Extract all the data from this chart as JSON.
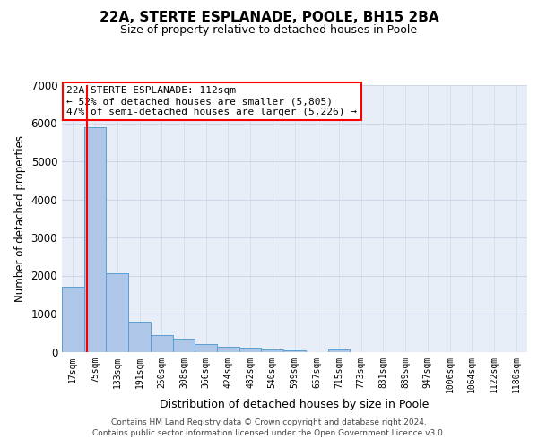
{
  "title1": "22A, STERTE ESPLANADE, POOLE, BH15 2BA",
  "title2": "Size of property relative to detached houses in Poole",
  "xlabel": "Distribution of detached houses by size in Poole",
  "ylabel": "Number of detached properties",
  "bar_labels": [
    "17sqm",
    "75sqm",
    "133sqm",
    "191sqm",
    "250sqm",
    "308sqm",
    "366sqm",
    "424sqm",
    "482sqm",
    "540sqm",
    "599sqm",
    "657sqm",
    "715sqm",
    "773sqm",
    "831sqm",
    "889sqm",
    "947sqm",
    "1006sqm",
    "1064sqm",
    "1122sqm",
    "1180sqm"
  ],
  "bar_values": [
    1700,
    5900,
    2050,
    800,
    430,
    330,
    200,
    130,
    100,
    50,
    30,
    0,
    50,
    0,
    0,
    0,
    0,
    0,
    0,
    0,
    0
  ],
  "bar_color": "#aec6e8",
  "bar_edge_color": "#5a9fd4",
  "ylim_max": 7000,
  "yticks": [
    0,
    1000,
    2000,
    3000,
    4000,
    5000,
    6000,
    7000
  ],
  "red_line_x": 0.63,
  "annotation_line1": "22A STERTE ESPLANADE: 112sqm",
  "annotation_line2": "← 52% of detached houses are smaller (5,805)",
  "annotation_line3": "47% of semi-detached houses are larger (5,226) →",
  "grid_color": "#d0d8e8",
  "bg_color": "#e8eef8",
  "footer1": "Contains HM Land Registry data © Crown copyright and database right 2024.",
  "footer2": "Contains public sector information licensed under the Open Government Licence v3.0."
}
